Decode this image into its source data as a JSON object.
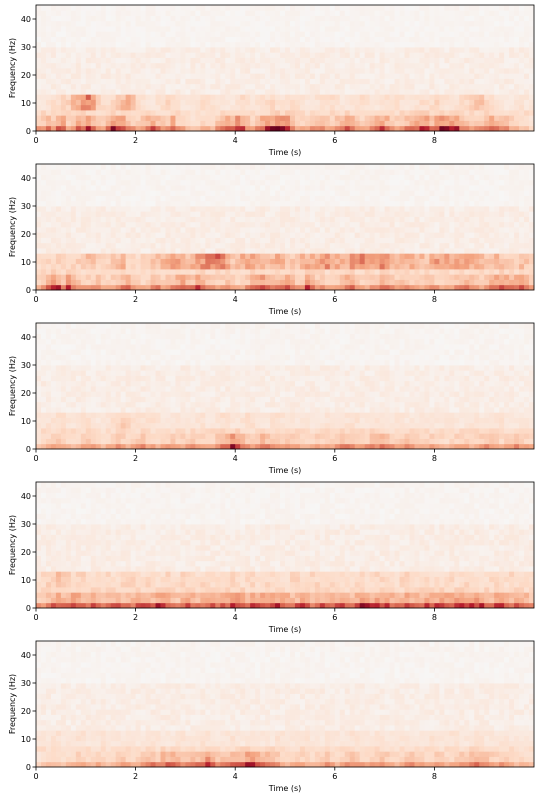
{
  "figure": {
    "panel_count": 5
  },
  "colormap": {
    "name": "RdBu_r",
    "low": "#f7f7f7",
    "mid": "#f4a582",
    "high": "#67001f"
  },
  "chart_data": [
    {
      "type": "heatmap",
      "xlabel": "Time (s)",
      "ylabel": "Frequency (Hz)",
      "xlim": [
        0,
        10
      ],
      "ylim": [
        0,
        45
      ],
      "xticks": [
        0,
        2,
        4,
        6,
        8
      ],
      "yticks": [
        0,
        10,
        20,
        30,
        40
      ],
      "time_bins": 100,
      "freq_bins": 24,
      "low_band_power": [
        0.55,
        0.6,
        0.7,
        0.55,
        0.75,
        0.8,
        0.5,
        0.6,
        0.85,
        0.7,
        0.9,
        0.7,
        0.6,
        0.5,
        0.7,
        0.95,
        0.8,
        0.9,
        0.6,
        0.55,
        0.5,
        0.6,
        0.7,
        0.8,
        0.65,
        0.55,
        0.6,
        0.8,
        0.55,
        0.5,
        0.4,
        0.35,
        0.4,
        0.45,
        0.5,
        0.4,
        0.6,
        0.7,
        0.75,
        0.8,
        0.95,
        0.8,
        0.6,
        0.5,
        0.7,
        0.8,
        0.85,
        0.9,
        0.95,
        1.0,
        0.9,
        0.7,
        0.5,
        0.45,
        0.5,
        0.55,
        0.6,
        0.7,
        0.55,
        0.5,
        0.6,
        0.7,
        0.8,
        0.75,
        0.6,
        0.5,
        0.55,
        0.6,
        0.7,
        0.8,
        0.75,
        0.6,
        0.55,
        0.6,
        0.7,
        0.75,
        0.8,
        0.9,
        0.85,
        0.7,
        0.8,
        0.9,
        0.95,
        0.9,
        0.85,
        0.7,
        0.6,
        0.5,
        0.55,
        0.6,
        0.75,
        0.8,
        0.7,
        0.65,
        0.6,
        0.5,
        0.45,
        0.4,
        0.35,
        0.3
      ],
      "mid_band_power": [
        0.2,
        0.2,
        0.25,
        0.3,
        0.3,
        0.35,
        0.4,
        0.5,
        0.6,
        0.8,
        0.9,
        0.7,
        0.4,
        0.3,
        0.3,
        0.35,
        0.4,
        0.5,
        0.7,
        0.6,
        0.3,
        0.25,
        0.2,
        0.2,
        0.25,
        0.3,
        0.35,
        0.3,
        0.25,
        0.2,
        0.2,
        0.2,
        0.25,
        0.3,
        0.3,
        0.3,
        0.25,
        0.2,
        0.2,
        0.2,
        0.3,
        0.35,
        0.3,
        0.25,
        0.25,
        0.3,
        0.3,
        0.35,
        0.3,
        0.25,
        0.25,
        0.3,
        0.3,
        0.25,
        0.2,
        0.2,
        0.25,
        0.3,
        0.3,
        0.3,
        0.25,
        0.2,
        0.2,
        0.25,
        0.3,
        0.3,
        0.25,
        0.2,
        0.2,
        0.25,
        0.3,
        0.3,
        0.3,
        0.25,
        0.2,
        0.2,
        0.25,
        0.3,
        0.3,
        0.3,
        0.35,
        0.3,
        0.25,
        0.2,
        0.25,
        0.3,
        0.35,
        0.4,
        0.5,
        0.45,
        0.35,
        0.3,
        0.25,
        0.2,
        0.2,
        0.2,
        0.25,
        0.25,
        0.2,
        0.2
      ]
    },
    {
      "type": "heatmap",
      "xlabel": "Time (s)",
      "ylabel": "Frequency (Hz)",
      "xlim": [
        0,
        10
      ],
      "ylim": [
        0,
        45
      ],
      "xticks": [
        0,
        2,
        4,
        6,
        8
      ],
      "yticks": [
        0,
        10,
        20,
        30,
        40
      ],
      "time_bins": 100,
      "freq_bins": 24,
      "low_band_power": [
        0.5,
        0.55,
        0.75,
        0.9,
        0.85,
        0.6,
        0.95,
        0.7,
        0.6,
        0.55,
        0.5,
        0.55,
        0.6,
        0.5,
        0.45,
        0.55,
        0.6,
        0.65,
        0.75,
        0.6,
        0.5,
        0.45,
        0.5,
        0.6,
        0.7,
        0.55,
        0.6,
        0.65,
        0.8,
        0.85,
        0.7,
        0.65,
        0.95,
        0.8,
        0.6,
        0.55,
        0.5,
        0.55,
        0.6,
        0.5,
        0.45,
        0.5,
        0.6,
        0.75,
        0.8,
        0.9,
        0.7,
        0.6,
        0.65,
        0.75,
        0.85,
        0.7,
        0.6,
        0.55,
        0.85,
        0.7,
        0.55,
        0.6,
        0.5,
        0.45,
        0.5,
        0.6,
        0.75,
        0.7,
        0.6,
        0.5,
        0.5,
        0.55,
        0.6,
        0.75,
        0.7,
        0.6,
        0.55,
        0.6,
        0.6,
        0.55,
        0.5,
        0.5,
        0.55,
        0.6,
        0.55,
        0.5,
        0.5,
        0.55,
        0.6,
        0.65,
        0.7,
        0.6,
        0.55,
        0.5,
        0.6,
        0.75,
        0.8,
        0.85,
        0.8,
        0.7,
        0.75,
        0.9,
        0.7,
        0.55
      ],
      "mid_band_power": [
        0.3,
        0.3,
        0.35,
        0.35,
        0.4,
        0.35,
        0.3,
        0.35,
        0.4,
        0.45,
        0.5,
        0.45,
        0.4,
        0.35,
        0.4,
        0.45,
        0.5,
        0.55,
        0.4,
        0.35,
        0.3,
        0.35,
        0.4,
        0.45,
        0.5,
        0.55,
        0.6,
        0.65,
        0.7,
        0.6,
        0.55,
        0.65,
        0.7,
        0.75,
        0.8,
        0.85,
        0.9,
        0.8,
        0.6,
        0.5,
        0.55,
        0.6,
        0.65,
        0.7,
        0.6,
        0.55,
        0.5,
        0.55,
        0.6,
        0.55,
        0.5,
        0.45,
        0.5,
        0.55,
        0.6,
        0.55,
        0.6,
        0.7,
        0.75,
        0.7,
        0.6,
        0.55,
        0.6,
        0.7,
        0.75,
        0.8,
        0.75,
        0.7,
        0.75,
        0.8,
        0.75,
        0.65,
        0.6,
        0.55,
        0.6,
        0.65,
        0.6,
        0.55,
        0.5,
        0.6,
        0.7,
        0.75,
        0.7,
        0.65,
        0.7,
        0.75,
        0.65,
        0.6,
        0.55,
        0.5,
        0.45,
        0.5,
        0.55,
        0.5,
        0.45,
        0.4,
        0.45,
        0.5,
        0.45,
        0.4
      ]
    },
    {
      "type": "heatmap",
      "xlabel": "Time (s)",
      "ylabel": "Frequency (Hz)",
      "xlim": [
        0,
        10
      ],
      "ylim": [
        0,
        45
      ],
      "xticks": [
        0,
        2,
        4,
        6,
        8
      ],
      "yticks": [
        0,
        10,
        20,
        30,
        40
      ],
      "time_bins": 100,
      "freq_bins": 24,
      "low_band_power": [
        0.35,
        0.4,
        0.45,
        0.5,
        0.55,
        0.5,
        0.45,
        0.4,
        0.45,
        0.5,
        0.55,
        0.5,
        0.45,
        0.4,
        0.45,
        0.5,
        0.55,
        0.5,
        0.45,
        0.5,
        0.55,
        0.6,
        0.55,
        0.5,
        0.45,
        0.5,
        0.55,
        0.6,
        0.55,
        0.5,
        0.55,
        0.6,
        0.55,
        0.5,
        0.45,
        0.5,
        0.6,
        0.7,
        0.8,
        0.95,
        0.85,
        0.7,
        0.6,
        0.55,
        0.6,
        0.7,
        0.65,
        0.55,
        0.5,
        0.55,
        0.6,
        0.55,
        0.5,
        0.45,
        0.45,
        0.5,
        0.55,
        0.5,
        0.45,
        0.5,
        0.55,
        0.6,
        0.65,
        0.6,
        0.55,
        0.5,
        0.55,
        0.6,
        0.65,
        0.7,
        0.6,
        0.55,
        0.5,
        0.55,
        0.6,
        0.55,
        0.5,
        0.45,
        0.5,
        0.55,
        0.5,
        0.45,
        0.4,
        0.45,
        0.5,
        0.55,
        0.5,
        0.45,
        0.5,
        0.55,
        0.6,
        0.55,
        0.5,
        0.45,
        0.5,
        0.55,
        0.6,
        0.55,
        0.5,
        0.45
      ],
      "mid_band_power": [
        0.2,
        0.2,
        0.25,
        0.25,
        0.3,
        0.3,
        0.25,
        0.2,
        0.25,
        0.3,
        0.3,
        0.25,
        0.2,
        0.2,
        0.25,
        0.3,
        0.35,
        0.4,
        0.35,
        0.3,
        0.25,
        0.25,
        0.3,
        0.3,
        0.25,
        0.2,
        0.2,
        0.25,
        0.25,
        0.2,
        0.2,
        0.2,
        0.25,
        0.25,
        0.2,
        0.2,
        0.25,
        0.3,
        0.25,
        0.2,
        0.2,
        0.25,
        0.3,
        0.3,
        0.25,
        0.2,
        0.2,
        0.25,
        0.3,
        0.25,
        0.2,
        0.2,
        0.2,
        0.25,
        0.25,
        0.2,
        0.2,
        0.2,
        0.25,
        0.25,
        0.2,
        0.2,
        0.25,
        0.3,
        0.25,
        0.2,
        0.2,
        0.2,
        0.25,
        0.25,
        0.2,
        0.2,
        0.25,
        0.25,
        0.2,
        0.2,
        0.2,
        0.25,
        0.25,
        0.2,
        0.2,
        0.2,
        0.25,
        0.25,
        0.2,
        0.2,
        0.2,
        0.25,
        0.25,
        0.2,
        0.2,
        0.2,
        0.25,
        0.25,
        0.2,
        0.2,
        0.2,
        0.2,
        0.2,
        0.2
      ]
    },
    {
      "type": "heatmap",
      "xlabel": "Time (s)",
      "ylabel": "Frequency (Hz)",
      "xlim": [
        0,
        10
      ],
      "ylim": [
        0,
        45
      ],
      "xticks": [
        0,
        2,
        4,
        6,
        8
      ],
      "yticks": [
        0,
        10,
        20,
        30,
        40
      ],
      "time_bins": 100,
      "freq_bins": 24,
      "low_band_power": [
        0.55,
        0.6,
        0.65,
        0.75,
        0.8,
        0.7,
        0.75,
        0.85,
        0.8,
        0.7,
        0.65,
        0.75,
        0.8,
        0.7,
        0.65,
        0.75,
        0.8,
        0.7,
        0.65,
        0.7,
        0.75,
        0.8,
        0.75,
        0.7,
        0.85,
        0.9,
        0.8,
        0.7,
        0.65,
        0.75,
        0.8,
        0.75,
        0.7,
        0.75,
        0.8,
        0.75,
        0.7,
        0.75,
        0.8,
        0.85,
        0.9,
        0.8,
        0.75,
        0.8,
        0.85,
        0.8,
        0.75,
        0.8,
        0.85,
        0.8,
        0.75,
        0.7,
        0.75,
        0.8,
        0.75,
        0.7,
        0.75,
        0.8,
        0.75,
        0.7,
        0.75,
        0.8,
        0.75,
        0.7,
        0.85,
        0.9,
        0.85,
        0.8,
        0.85,
        0.9,
        0.8,
        0.75,
        0.7,
        0.75,
        0.8,
        0.75,
        0.7,
        0.75,
        0.8,
        0.75,
        0.8,
        0.85,
        0.8,
        0.85,
        0.9,
        0.85,
        0.8,
        0.85,
        0.9,
        0.85,
        0.8,
        0.75,
        0.8,
        0.85,
        0.8,
        0.75,
        0.8,
        0.75,
        0.7,
        0.65
      ],
      "mid_band_power": [
        0.3,
        0.35,
        0.4,
        0.45,
        0.5,
        0.45,
        0.4,
        0.35,
        0.35,
        0.4,
        0.35,
        0.3,
        0.3,
        0.35,
        0.35,
        0.3,
        0.3,
        0.35,
        0.4,
        0.35,
        0.3,
        0.3,
        0.35,
        0.35,
        0.3,
        0.3,
        0.35,
        0.3,
        0.3,
        0.35,
        0.35,
        0.3,
        0.3,
        0.35,
        0.35,
        0.3,
        0.3,
        0.3,
        0.35,
        0.35,
        0.3,
        0.3,
        0.35,
        0.35,
        0.3,
        0.3,
        0.35,
        0.35,
        0.3,
        0.3,
        0.3,
        0.35,
        0.35,
        0.3,
        0.3,
        0.35,
        0.35,
        0.3,
        0.3,
        0.35,
        0.35,
        0.3,
        0.3,
        0.3,
        0.35,
        0.35,
        0.3,
        0.3,
        0.35,
        0.35,
        0.3,
        0.3,
        0.3,
        0.35,
        0.35,
        0.3,
        0.3,
        0.35,
        0.35,
        0.3,
        0.3,
        0.3,
        0.35,
        0.35,
        0.3,
        0.3,
        0.35,
        0.35,
        0.3,
        0.3,
        0.3,
        0.35,
        0.35,
        0.3,
        0.3,
        0.35,
        0.35,
        0.3,
        0.3,
        0.3
      ]
    },
    {
      "type": "heatmap",
      "xlabel": "Time (s)",
      "ylabel": "Frequency (Hz)",
      "xlim": [
        0,
        10
      ],
      "ylim": [
        0,
        45
      ],
      "xticks": [
        0,
        2,
        4,
        6,
        8
      ],
      "yticks": [
        0,
        10,
        20,
        30,
        40
      ],
      "time_bins": 100,
      "freq_bins": 24,
      "low_band_power": [
        0.3,
        0.35,
        0.4,
        0.45,
        0.4,
        0.35,
        0.4,
        0.45,
        0.5,
        0.45,
        0.4,
        0.45,
        0.5,
        0.45,
        0.4,
        0.45,
        0.5,
        0.55,
        0.5,
        0.45,
        0.5,
        0.55,
        0.6,
        0.65,
        0.6,
        0.7,
        0.75,
        0.7,
        0.65,
        0.6,
        0.6,
        0.65,
        0.7,
        0.75,
        0.95,
        0.8,
        0.65,
        0.6,
        0.65,
        0.7,
        0.75,
        0.8,
        0.85,
        0.9,
        0.8,
        0.75,
        0.7,
        0.65,
        0.55,
        0.5,
        0.45,
        0.5,
        0.55,
        0.5,
        0.45,
        0.4,
        0.45,
        0.5,
        0.55,
        0.5,
        0.45,
        0.5,
        0.55,
        0.6,
        0.55,
        0.5,
        0.45,
        0.5,
        0.55,
        0.6,
        0.55,
        0.5,
        0.45,
        0.5,
        0.55,
        0.6,
        0.55,
        0.5,
        0.45,
        0.5,
        0.55,
        0.5,
        0.45,
        0.5,
        0.55,
        0.6,
        0.55,
        0.65,
        0.7,
        0.65,
        0.6,
        0.55,
        0.5,
        0.55,
        0.5,
        0.45,
        0.4,
        0.45,
        0.4,
        0.35
      ],
      "mid_band_power": [
        0.2,
        0.2,
        0.2,
        0.25,
        0.25,
        0.2,
        0.2,
        0.2,
        0.25,
        0.25,
        0.2,
        0.2,
        0.2,
        0.25,
        0.25,
        0.2,
        0.2,
        0.2,
        0.25,
        0.25,
        0.2,
        0.2,
        0.2,
        0.25,
        0.25,
        0.2,
        0.2,
        0.2,
        0.25,
        0.25,
        0.2,
        0.2,
        0.2,
        0.25,
        0.25,
        0.2,
        0.2,
        0.2,
        0.25,
        0.25,
        0.2,
        0.2,
        0.2,
        0.25,
        0.25,
        0.2,
        0.2,
        0.2,
        0.25,
        0.25,
        0.2,
        0.2,
        0.2,
        0.25,
        0.25,
        0.2,
        0.2,
        0.2,
        0.25,
        0.25,
        0.2,
        0.2,
        0.2,
        0.25,
        0.25,
        0.2,
        0.2,
        0.2,
        0.25,
        0.25,
        0.2,
        0.2,
        0.2,
        0.25,
        0.25,
        0.2,
        0.2,
        0.2,
        0.25,
        0.25,
        0.2,
        0.2,
        0.2,
        0.25,
        0.25,
        0.2,
        0.2,
        0.2,
        0.25,
        0.25,
        0.2,
        0.2,
        0.2,
        0.25,
        0.25,
        0.2,
        0.2,
        0.2,
        0.2,
        0.2
      ]
    }
  ]
}
